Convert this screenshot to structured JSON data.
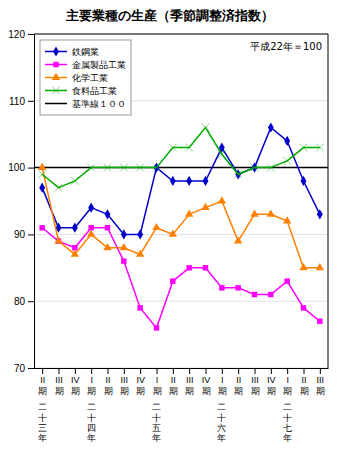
{
  "chart_data": {
    "type": "line",
    "title": "主要業種の生産（季節調整済指数）",
    "subtitle": "平成22年＝100",
    "categories": [
      "II\n期",
      "III\n期",
      "IV\n期",
      "I\n期",
      "II\n期",
      "III\n期",
      "IV\n期",
      "I\n期",
      "II\n期",
      "III\n期",
      "IV\n期",
      "I\n期",
      "II\n期",
      "III\n期",
      "IV\n期",
      "I\n期",
      "II\n期",
      "III\n期"
    ],
    "series": [
      {
        "name": "鉄鋼業",
        "color": "#0000cc",
        "marker": "diamond",
        "values": [
          97,
          91,
          91,
          94,
          93,
          90,
          90,
          100,
          98,
          98,
          98,
          103,
          99,
          100,
          106,
          104,
          98,
          93
        ]
      },
      {
        "name": "金属製品工業",
        "color": "#ff00ff",
        "marker": "square",
        "values": [
          91,
          89,
          88,
          91,
          91,
          86,
          79,
          76,
          83,
          85,
          85,
          82,
          82,
          81,
          81,
          83,
          79,
          77
        ]
      },
      {
        "name": "化学工業",
        "color": "#ff8000",
        "marker": "triangle",
        "values": [
          100,
          89,
          87,
          90,
          88,
          88,
          87,
          91,
          90,
          93,
          94,
          95,
          89,
          93,
          93,
          92,
          85,
          85
        ]
      },
      {
        "name": "食料品工業",
        "color": "#00aa00",
        "marker": "x",
        "values": [
          99,
          97,
          98,
          100,
          100,
          100,
          100,
          100,
          103,
          103,
          106,
          102,
          99,
          100,
          100,
          101,
          103,
          103
        ]
      }
    ],
    "reference_lines": [
      {
        "name": "基準線１００",
        "value": 100,
        "color": "#000000"
      }
    ],
    "annotations": [
      {
        "text": "二\n十\n三\n年",
        "x": 0
      },
      {
        "text": "二\n十\n四\n年",
        "x": 3
      },
      {
        "text": "二\n十\n五\n年",
        "x": 7
      },
      {
        "text": "二\n十\n六\n年",
        "x": 11
      },
      {
        "text": "二\n十\n七\n年",
        "x": 15
      }
    ],
    "ylim": [
      70,
      120
    ],
    "yticks": [
      70,
      80,
      90,
      100,
      110,
      120
    ],
    "grid": true,
    "legend": "upper left"
  }
}
